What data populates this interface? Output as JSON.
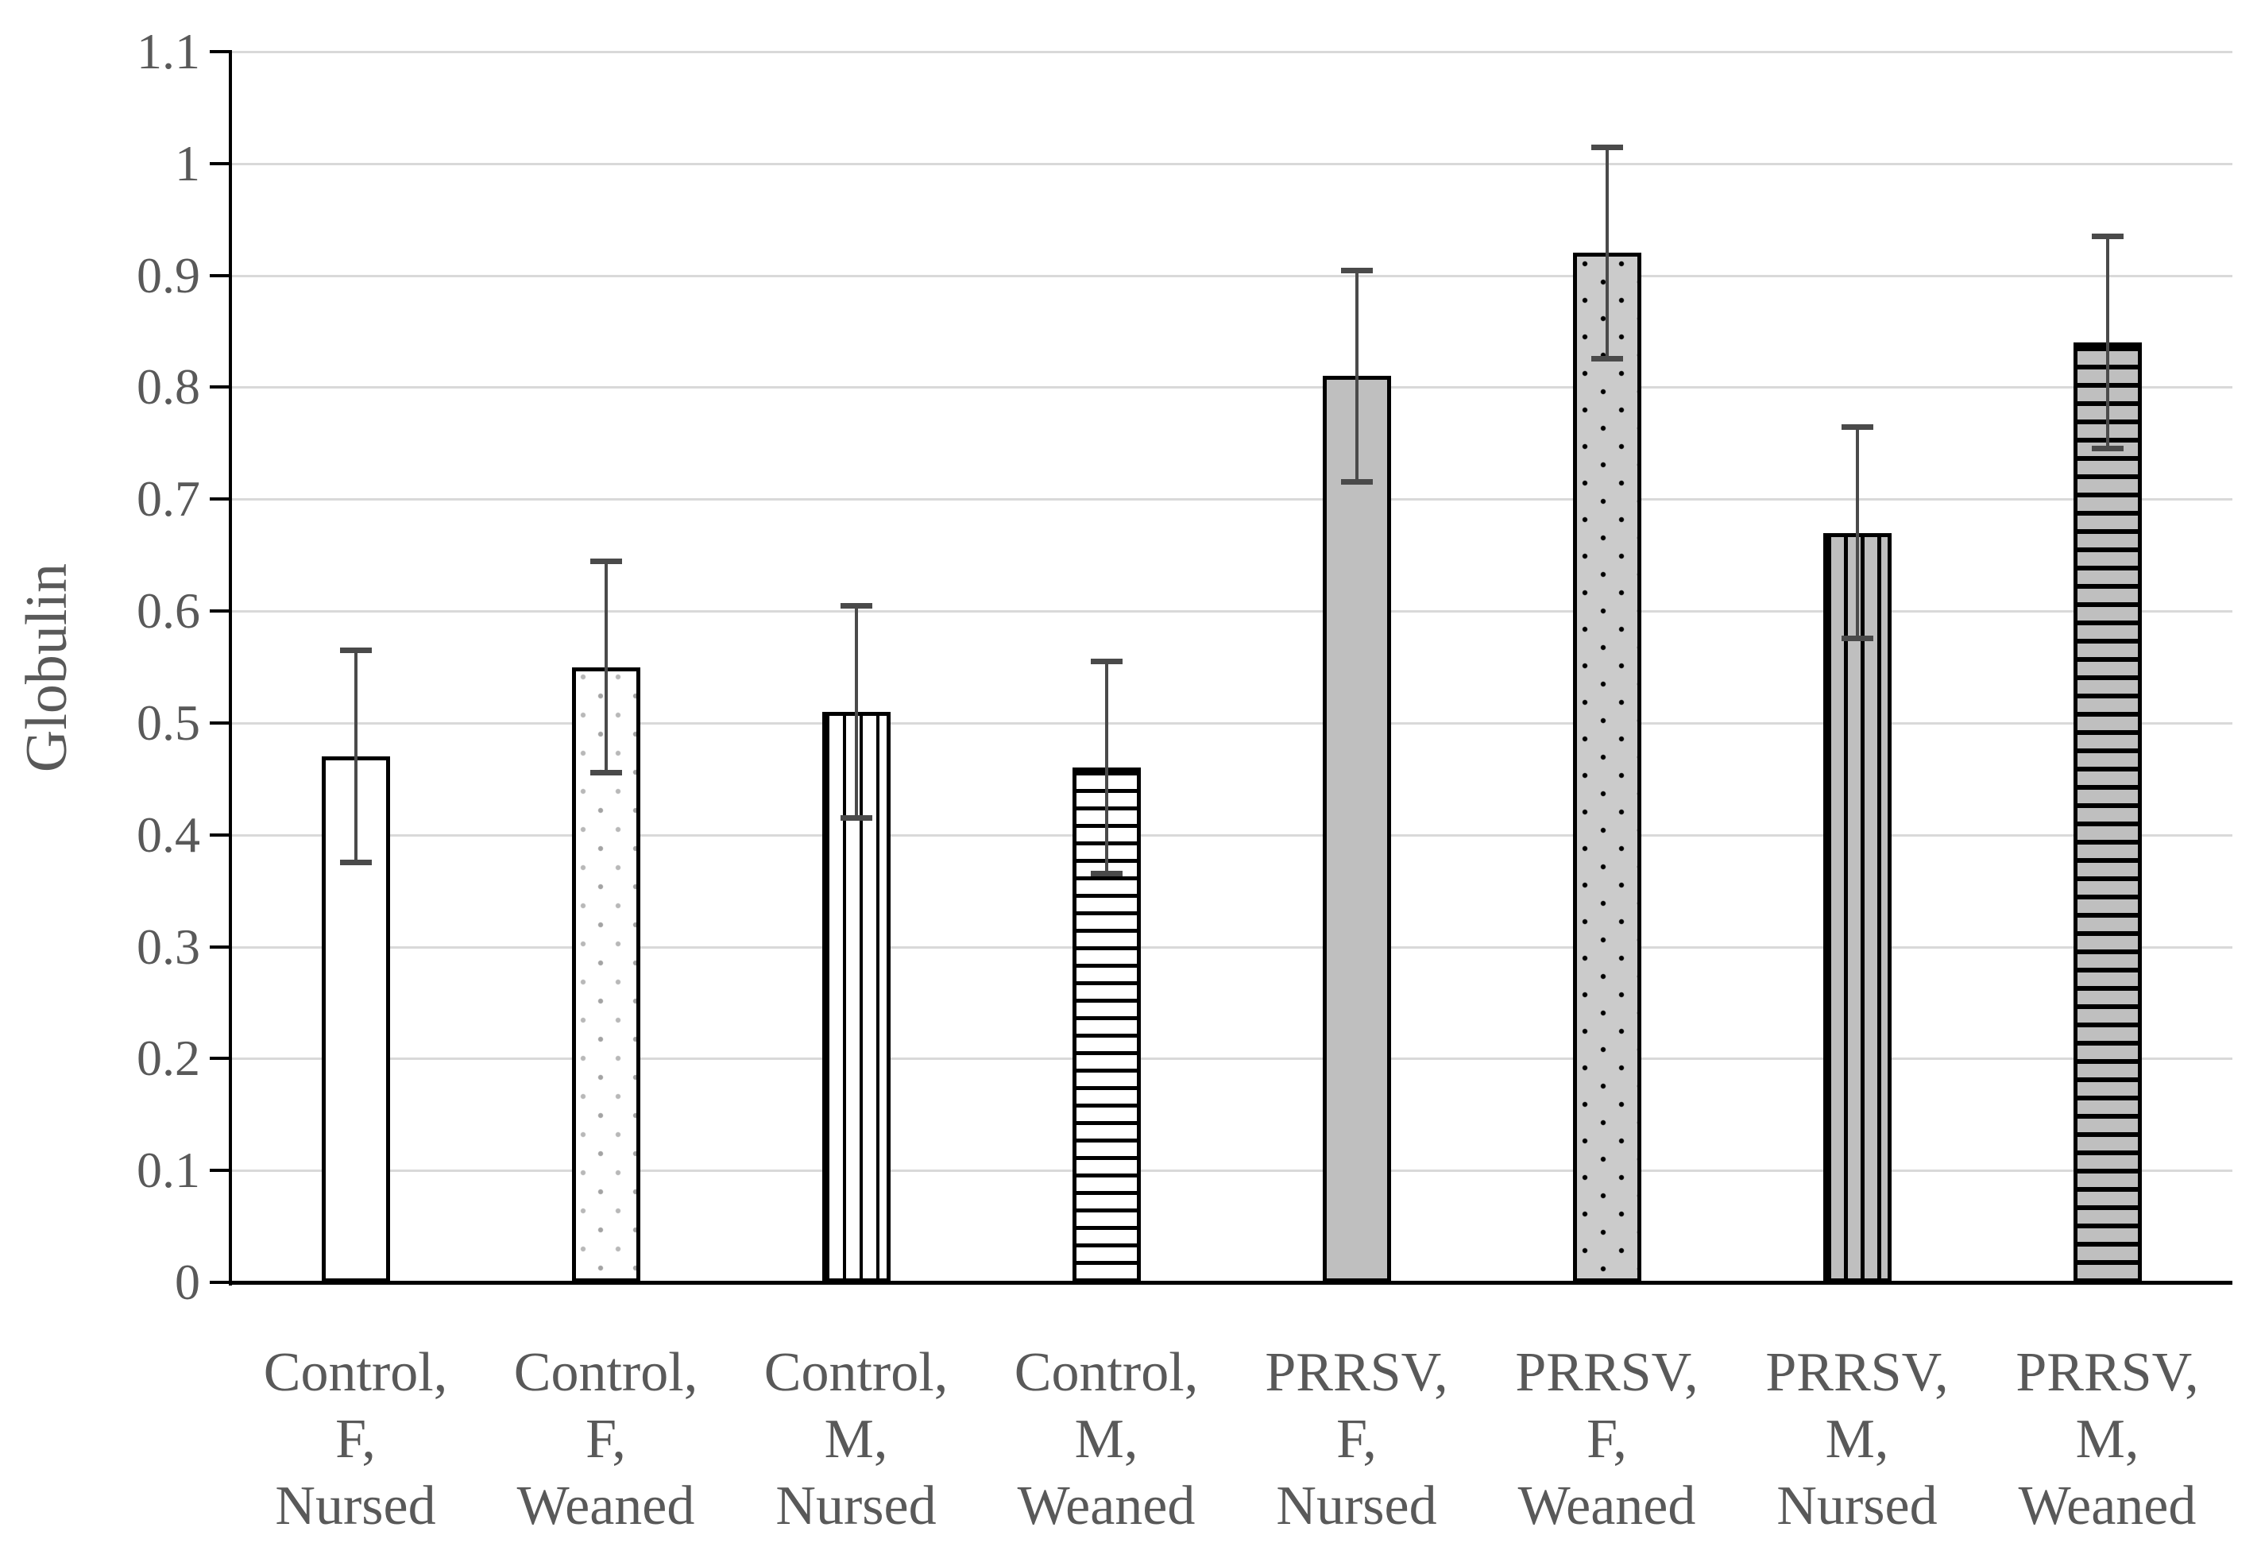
{
  "figure": {
    "ylabel": "Globulin",
    "colors": {
      "background": "#ffffff",
      "text": "#595959",
      "grid": "#d9d9d9",
      "axis": "#000000",
      "bar_border": "#000000",
      "bar_gray_fill": "#bfbfbf",
      "error_bar": "#4a4a4a"
    }
  },
  "chart_data": {
    "type": "bar",
    "title": "",
    "xlabel": "",
    "ylabel": "Globulin",
    "ylim": [
      0,
      1.1
    ],
    "ytick_labels": [
      "0",
      "0.1",
      "0.2",
      "0.3",
      "0.4",
      "0.5",
      "0.6",
      "0.7",
      "0.8",
      "0.9",
      "1",
      "1.1"
    ],
    "grid": "horizontal gridlines every 0.1",
    "legend_position": "none",
    "categories": [
      "Control,\nF,\nNursed",
      "Control,\nF,\nWeaned",
      "Control,\nM,\nNursed",
      "Control,\nM,\nWeaned",
      "PRRSV,\nF,\nNursed",
      "PRRSV,\nF,\nWeaned",
      "PRRSV,\nM,\nNursed",
      "PRRSV,\nM,\nWeaned"
    ],
    "series": [
      {
        "name": "Globulin",
        "values": [
          0.47,
          0.55,
          0.51,
          0.46,
          0.81,
          0.92,
          0.67,
          0.84
        ],
        "error_upper": [
          0.565,
          0.645,
          0.605,
          0.555,
          0.905,
          1.015,
          0.765,
          0.935
        ],
        "error_lower": [
          0.375,
          0.455,
          0.415,
          0.365,
          0.715,
          0.825,
          0.575,
          0.745
        ]
      }
    ],
    "bar_patterns": [
      "plain-white",
      "speckled-white",
      "vertical-stripes-white",
      "horizontal-stripes-white",
      "solid-gray",
      "dotted-gray",
      "vertical-stripes-gray",
      "horizontal-stripes-gray"
    ]
  }
}
